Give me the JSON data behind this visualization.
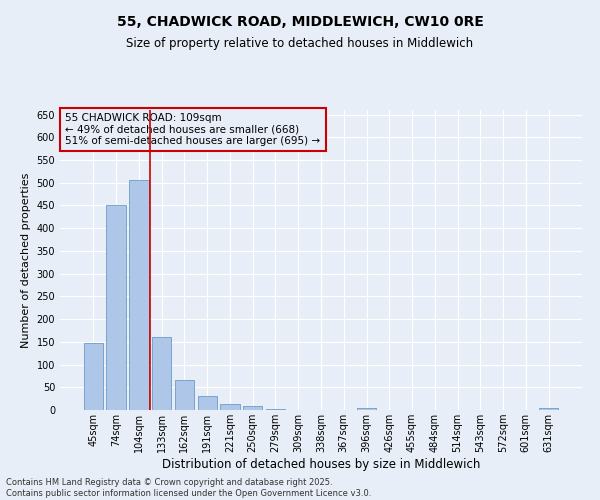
{
  "title": "55, CHADWICK ROAD, MIDDLEWICH, CW10 0RE",
  "subtitle": "Size of property relative to detached houses in Middlewich",
  "xlabel": "Distribution of detached houses by size in Middlewich",
  "ylabel": "Number of detached properties",
  "categories": [
    "45sqm",
    "74sqm",
    "104sqm",
    "133sqm",
    "162sqm",
    "191sqm",
    "221sqm",
    "250sqm",
    "279sqm",
    "309sqm",
    "338sqm",
    "367sqm",
    "396sqm",
    "426sqm",
    "455sqm",
    "484sqm",
    "514sqm",
    "543sqm",
    "572sqm",
    "601sqm",
    "631sqm"
  ],
  "values": [
    148,
    450,
    507,
    160,
    67,
    30,
    14,
    8,
    3,
    0,
    0,
    0,
    4,
    0,
    0,
    0,
    0,
    0,
    0,
    0,
    4
  ],
  "bar_color": "#aec6e8",
  "bar_edge_color": "#5a8fc0",
  "vline_x": 2.5,
  "vline_color": "#cc0000",
  "annotation_box_text": "55 CHADWICK ROAD: 109sqm\n← 49% of detached houses are smaller (668)\n51% of semi-detached houses are larger (695) →",
  "box_edge_color": "#cc0000",
  "ylim": [
    0,
    660
  ],
  "yticks": [
    0,
    50,
    100,
    150,
    200,
    250,
    300,
    350,
    400,
    450,
    500,
    550,
    600,
    650
  ],
  "title_fontsize": 10,
  "subtitle_fontsize": 8.5,
  "tick_fontsize": 7,
  "xlabel_fontsize": 8.5,
  "ylabel_fontsize": 8,
  "annotation_fontsize": 7.5,
  "footer_text": "Contains HM Land Registry data © Crown copyright and database right 2025.\nContains public sector information licensed under the Open Government Licence v3.0.",
  "footer_fontsize": 6,
  "background_color": "#e8eef7",
  "grid_color": "#ffffff"
}
